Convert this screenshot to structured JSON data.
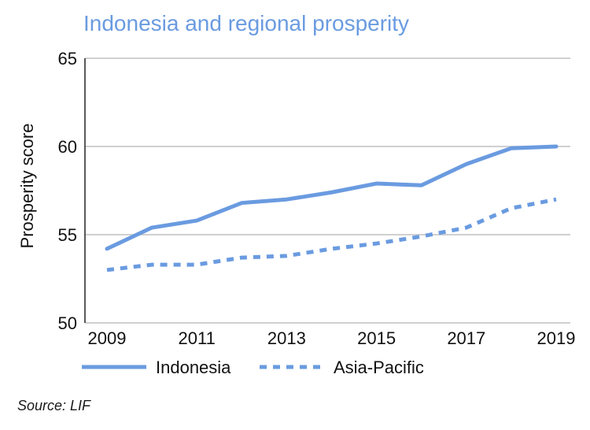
{
  "title": "Indonesia and regional prosperity",
  "source": "Source: LIF",
  "colors": {
    "title": "#6a9be0",
    "line": "#6a9be0",
    "grid": "#d0d0d0",
    "axis": "#222222"
  },
  "chart_data": {
    "type": "line",
    "title": "Indonesia and regional prosperity",
    "xlabel": "",
    "ylabel": "Prosperity score",
    "xlim": [
      2009,
      2019
    ],
    "ylim": [
      50,
      65
    ],
    "x_ticks": [
      "2009",
      "2011",
      "2013",
      "2015",
      "2017",
      "2019"
    ],
    "y_ticks": [
      "50",
      "55",
      "60",
      "65"
    ],
    "grid": true,
    "legend": "bottom",
    "x": [
      2009,
      2010,
      2011,
      2012,
      2013,
      2014,
      2015,
      2016,
      2017,
      2018,
      2019
    ],
    "series": [
      {
        "name": "Indonesia",
        "style": "solid",
        "values": [
          54.2,
          55.4,
          55.8,
          56.8,
          57.0,
          57.4,
          57.9,
          57.8,
          59.0,
          59.9,
          60.0
        ]
      },
      {
        "name": "Asia-Pacific",
        "style": "dashed",
        "values": [
          53.0,
          53.3,
          53.3,
          53.7,
          53.8,
          54.2,
          54.5,
          54.9,
          55.4,
          56.5,
          57.0
        ]
      }
    ]
  }
}
